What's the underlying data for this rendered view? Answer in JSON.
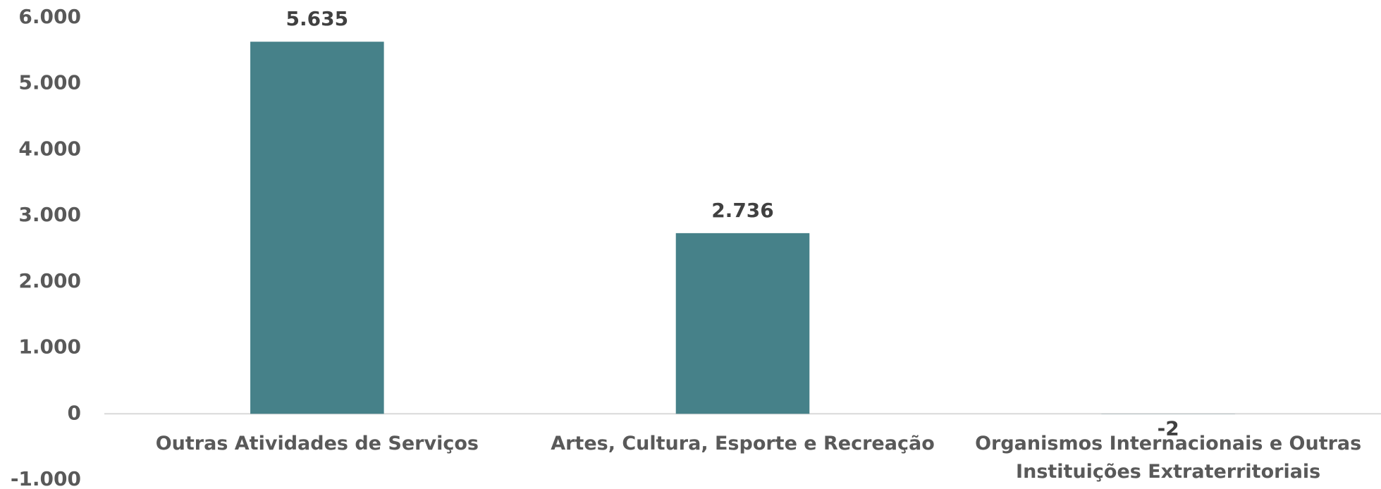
{
  "chart_data": {
    "type": "bar",
    "categories": [
      "Outras Atividades de Serviços",
      "Artes, Cultura, Esporte e Recreação",
      "Organismos Internacionais e Outras Instituições Extraterritoriais"
    ],
    "values": [
      5635,
      2736,
      -2
    ],
    "value_labels": [
      "5.635",
      "2.736",
      "-2"
    ],
    "color": "#468189",
    "ylim": [
      -1000,
      6000
    ],
    "yticks": [
      {
        "value": -1000,
        "label": "-1.000"
      },
      0,
      {
        "value": 1000,
        "label": "1.000"
      },
      {
        "value": 2000,
        "label": "2.000"
      },
      {
        "value": 3000,
        "label": "3.000"
      },
      {
        "value": 4000,
        "label": "4.000"
      },
      {
        "value": 5000,
        "label": "5.000"
      },
      {
        "value": 6000,
        "label": "6.000"
      }
    ],
    "grid": false
  }
}
